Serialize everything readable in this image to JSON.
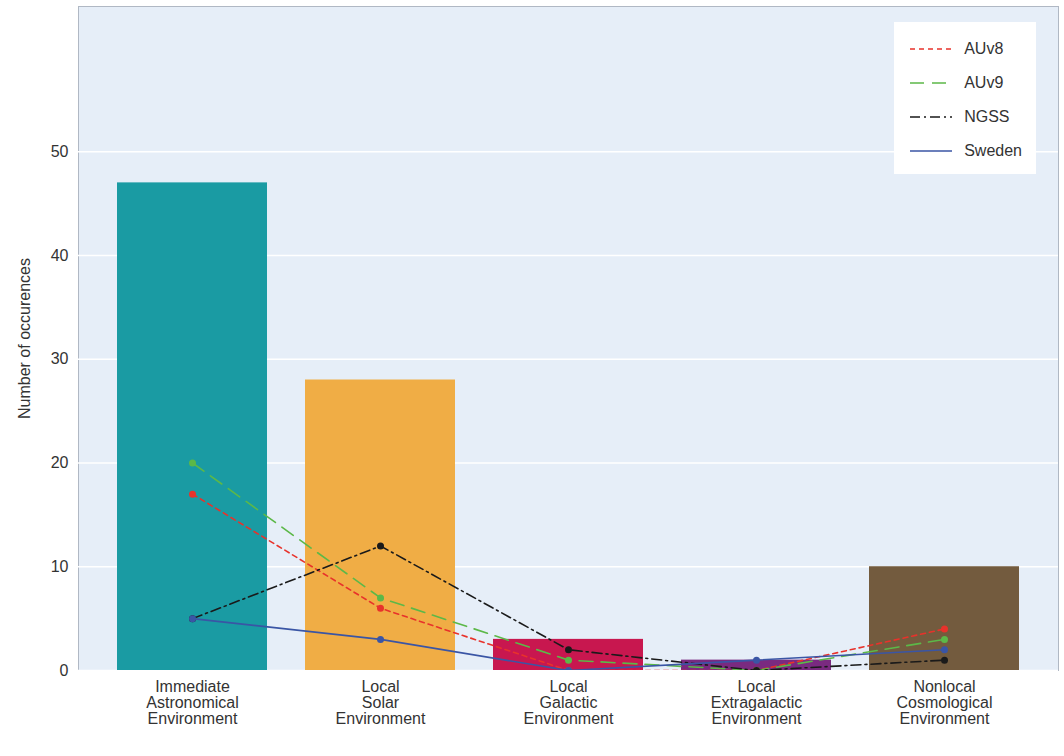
{
  "chart_data": {
    "type": "bar",
    "categories": [
      "Immediate Astronomical Environment",
      "Local Solar Environment",
      "Local Galactic Environment",
      "Local Extragalactic Environment",
      "Nonlocal Cosmological Environment"
    ],
    "values": [
      47,
      28,
      3,
      1,
      10
    ],
    "colors": [
      "#1a9ba3",
      "#f0ad45",
      "#c8174f",
      "#7a2a80",
      "#735b3e"
    ],
    "series": [
      {
        "name": "AUv8",
        "type": "line",
        "color": "#e8322b",
        "line_style": "dashed",
        "marker": "circle",
        "values": [
          17,
          6,
          0,
          0,
          4
        ]
      },
      {
        "name": "AUv9",
        "type": "line",
        "color": "#5cb848",
        "line_style": "long-dashed",
        "marker": "circle",
        "values": [
          20,
          7,
          1,
          0,
          3
        ]
      },
      {
        "name": "NGSS",
        "type": "line",
        "color": "#1a1a1a",
        "line_style": "dash-dot",
        "marker": "circle",
        "values": [
          5,
          12,
          2,
          0,
          1
        ]
      },
      {
        "name": "Sweden",
        "type": "line",
        "color": "#3a55a5",
        "line_style": "solid",
        "marker": "circle",
        "values": [
          5,
          3,
          0,
          1,
          2
        ]
      }
    ],
    "ylabel": "Number of occurences",
    "ylim": [
      0,
      64
    ],
    "yticks": [
      0,
      10,
      20,
      30,
      40,
      50
    ],
    "grid": true,
    "legend": "top-right"
  }
}
